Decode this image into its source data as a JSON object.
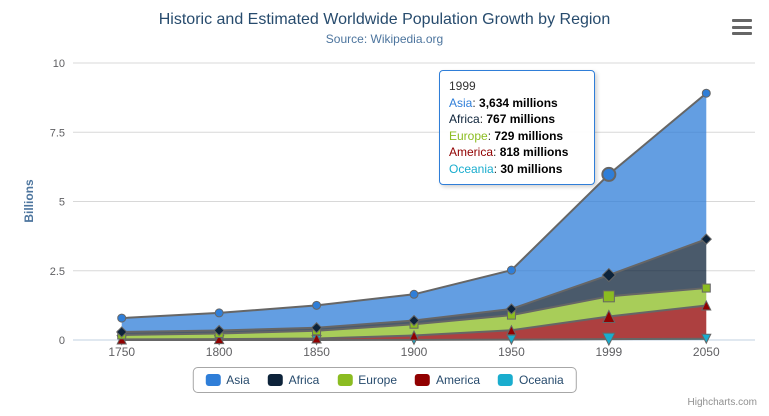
{
  "chart_data": {
    "type": "area",
    "stacking": "normal",
    "title": "Historic and Estimated Worldwide Population Growth by Region",
    "subtitle": "Source: Wikipedia.org",
    "ylabel": "Billions",
    "xlabel": "",
    "unit": "millions",
    "categories": [
      "1750",
      "1800",
      "1850",
      "1900",
      "1950",
      "1999",
      "2050"
    ],
    "yticks_billions": [
      0,
      2.5,
      5,
      7.5,
      10
    ],
    "ylim_billions": [
      0,
      10
    ],
    "grid": true,
    "legend_position": "bottom",
    "hover_index": 5,
    "series": [
      {
        "name": "Asia",
        "color": "#2f7ed8",
        "marker": "circle",
        "values": [
          502,
          635,
          809,
          947,
          1402,
          3634,
          5268
        ]
      },
      {
        "name": "Africa",
        "color": "#0d233a",
        "marker": "diamond",
        "values": [
          106,
          107,
          111,
          133,
          221,
          767,
          1766
        ]
      },
      {
        "name": "Europe",
        "color": "#8bbc21",
        "marker": "square",
        "values": [
          163,
          203,
          276,
          408,
          547,
          729,
          628
        ]
      },
      {
        "name": "America",
        "color": "#910000",
        "marker": "triangle",
        "values": [
          18,
          31,
          54,
          156,
          339,
          818,
          1201
        ]
      },
      {
        "name": "Oceania",
        "color": "#1aadce",
        "marker": "triangle-down",
        "values": [
          2,
          2,
          2,
          6,
          13,
          30,
          46
        ]
      }
    ]
  },
  "tooltip": {
    "header": "1999",
    "rows": [
      {
        "label": "Asia",
        "color": "#2f7ed8",
        "value": "3,634 millions"
      },
      {
        "label": "Africa",
        "color": "#0d233a",
        "value": "767 millions"
      },
      {
        "label": "Europe",
        "color": "#8bbc21",
        "value": "729 millions"
      },
      {
        "label": "America",
        "color": "#910000",
        "value": "818 millions"
      },
      {
        "label": "Oceania",
        "color": "#1aadce",
        "value": "30 millions"
      }
    ]
  },
  "colors": {
    "grid": "#d8d8d8",
    "axis_line": "#c0d0e0",
    "series_line": "#666666",
    "axis_labels": "#606063",
    "title": "#274b6d",
    "subtitle": "#4d759e",
    "legend_text": "#274b6d",
    "tooltip_border": "#2f7ed8",
    "fill_opacity": 0.75
  },
  "credits": {
    "label": "Highcharts.com"
  }
}
